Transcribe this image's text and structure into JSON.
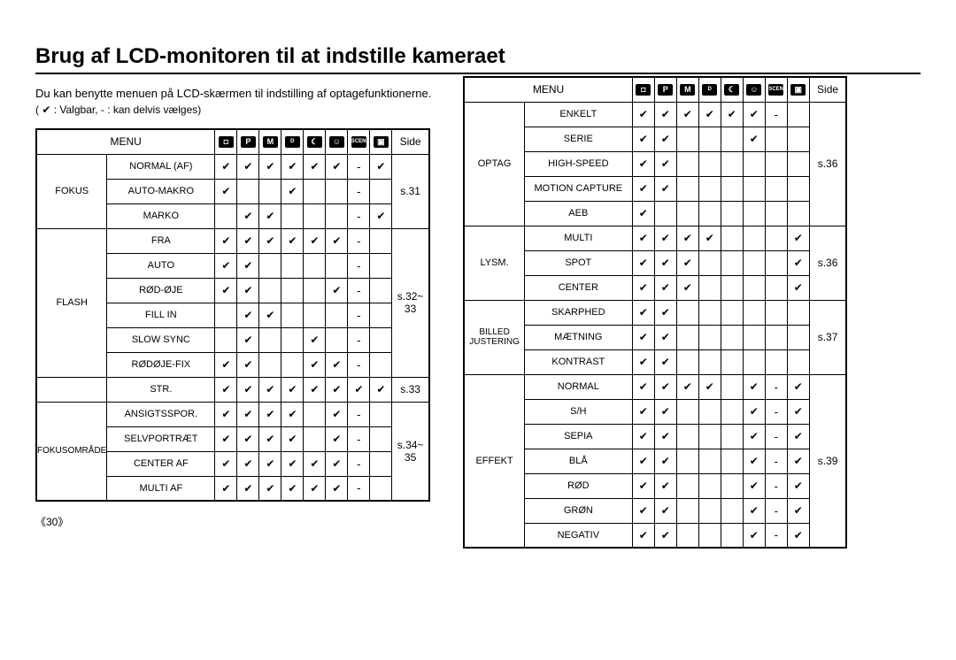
{
  "page_title": "Brug af LCD-monitoren til at indstille kameraet",
  "intro": "Du kan benytte menuen på LCD-skærmen til indstilling af optagefunktionerne.",
  "legend": "( ✔ : Valgbar, - : kan delvis vælges)",
  "page_number": "《30》",
  "check": "✔",
  "dash": "-",
  "header": {
    "menu": "MENU",
    "side": "Side",
    "icons": [
      "camera",
      "P",
      "M",
      "dual",
      "night",
      "portrait",
      "SCENE",
      "movie"
    ]
  },
  "icon_labels": {
    "camera": "◘",
    "P": "P",
    "M": "M",
    "dual": "ᴰ",
    "night": "☾",
    "portrait": "☺",
    "SCENE": "SCENE",
    "movie": "▣"
  },
  "left": {
    "groups": [
      {
        "cat": "FOKUS",
        "side": "s.31",
        "catClass": "cat",
        "rows": [
          {
            "item": "NORMAL (AF)",
            "cells": [
              "c",
              "c",
              "c",
              "c",
              "c",
              "c",
              "d",
              "c"
            ]
          },
          {
            "item": "AUTO-MAKRO",
            "cells": [
              "c",
              "",
              "",
              "c",
              "",
              "",
              "d",
              ""
            ]
          },
          {
            "item": "MARKO",
            "cells": [
              "",
              "c",
              "c",
              "",
              "",
              "",
              "d",
              "c"
            ]
          }
        ]
      },
      {
        "cat": "FLASH",
        "side": "s.32~ 33",
        "catClass": "cat",
        "rows": [
          {
            "item": "FRA",
            "cells": [
              "c",
              "c",
              "c",
              "c",
              "c",
              "c",
              "d",
              ""
            ]
          },
          {
            "item": "AUTO",
            "cells": [
              "c",
              "c",
              "",
              "",
              "",
              "",
              "d",
              ""
            ]
          },
          {
            "item": "RØD-ØJE",
            "cells": [
              "c",
              "c",
              "",
              "",
              "",
              "c",
              "d",
              ""
            ]
          },
          {
            "item": "FILL IN",
            "cells": [
              "",
              "c",
              "c",
              "",
              "",
              "",
              "d",
              ""
            ]
          },
          {
            "item": "SLOW SYNC",
            "cells": [
              "",
              "c",
              "",
              "",
              "c",
              "",
              "d",
              ""
            ]
          },
          {
            "item": "RØDØJE-FIX",
            "cells": [
              "c",
              "c",
              "",
              "",
              "c",
              "c",
              "d",
              ""
            ]
          }
        ]
      },
      {
        "cat": "",
        "side": "s.33",
        "catClass": "cat",
        "rows": [
          {
            "item": "STR.",
            "cells": [
              "c",
              "c",
              "c",
              "c",
              "c",
              "c",
              "c",
              "c"
            ]
          }
        ]
      },
      {
        "cat": "FOKUSOMRÅDE",
        "side": "s.34~ 35",
        "catClass": "cat-small",
        "rows": [
          {
            "item": "ANSIGTSSPOR.",
            "cells": [
              "c",
              "c",
              "c",
              "c",
              "",
              "c",
              "d",
              ""
            ]
          },
          {
            "item": "SELVPORTRÆT",
            "cells": [
              "c",
              "c",
              "c",
              "c",
              "",
              "c",
              "d",
              ""
            ]
          },
          {
            "item": "CENTER AF",
            "cells": [
              "c",
              "c",
              "c",
              "c",
              "c",
              "c",
              "d",
              ""
            ]
          },
          {
            "item": "MULTI AF",
            "cells": [
              "c",
              "c",
              "c",
              "c",
              "c",
              "c",
              "d",
              ""
            ]
          }
        ]
      }
    ]
  },
  "right": {
    "groups": [
      {
        "cat": "OPTAG",
        "side": "s.36",
        "catClass": "cat",
        "rows": [
          {
            "item": "ENKELT",
            "cells": [
              "c",
              "c",
              "c",
              "c",
              "c",
              "c",
              "d",
              ""
            ]
          },
          {
            "item": "SERIE",
            "cells": [
              "c",
              "c",
              "",
              "",
              "",
              "c",
              "",
              ""
            ]
          },
          {
            "item": "HIGH-SPEED",
            "cells": [
              "c",
              "c",
              "",
              "",
              "",
              "",
              "",
              ""
            ]
          },
          {
            "item": "MOTION CAPTURE",
            "cells": [
              "c",
              "c",
              "",
              "",
              "",
              "",
              "",
              ""
            ]
          },
          {
            "item": "AEB",
            "cells": [
              "c",
              "",
              "",
              "",
              "",
              "",
              "",
              ""
            ]
          }
        ]
      },
      {
        "cat": "LYSM.",
        "side": "s.36",
        "catClass": "cat",
        "rows": [
          {
            "item": "MULTI",
            "cells": [
              "c",
              "c",
              "c",
              "c",
              "",
              "",
              "",
              "c"
            ]
          },
          {
            "item": "SPOT",
            "cells": [
              "c",
              "c",
              "c",
              "",
              "",
              "",
              "",
              "c"
            ]
          },
          {
            "item": "CENTER",
            "cells": [
              "c",
              "c",
              "c",
              "",
              "",
              "",
              "",
              "c"
            ]
          }
        ]
      },
      {
        "cat": "BILLED JUSTERING",
        "side": "s.37",
        "catClass": "cat-small",
        "rows": [
          {
            "item": "SKARPHED",
            "cells": [
              "c",
              "c",
              "",
              "",
              "",
              "",
              "",
              ""
            ]
          },
          {
            "item": "MÆTNING",
            "cells": [
              "c",
              "c",
              "",
              "",
              "",
              "",
              "",
              ""
            ]
          },
          {
            "item": "KONTRAST",
            "cells": [
              "c",
              "c",
              "",
              "",
              "",
              "",
              "",
              ""
            ]
          }
        ]
      },
      {
        "cat": "EFFEKT",
        "side": "s.39",
        "catClass": "cat",
        "rows": [
          {
            "item": "NORMAL",
            "cells": [
              "c",
              "c",
              "c",
              "c",
              "",
              "c",
              "d",
              "c"
            ]
          },
          {
            "item": "S/H",
            "cells": [
              "c",
              "c",
              "",
              "",
              "",
              "c",
              "d",
              "c"
            ]
          },
          {
            "item": "SEPIA",
            "cells": [
              "c",
              "c",
              "",
              "",
              "",
              "c",
              "d",
              "c"
            ]
          },
          {
            "item": "BLÅ",
            "cells": [
              "c",
              "c",
              "",
              "",
              "",
              "c",
              "d",
              "c"
            ]
          },
          {
            "item": "RØD",
            "cells": [
              "c",
              "c",
              "",
              "",
              "",
              "c",
              "d",
              "c"
            ]
          },
          {
            "item": "GRØN",
            "cells": [
              "c",
              "c",
              "",
              "",
              "",
              "c",
              "d",
              "c"
            ]
          },
          {
            "item": "NEGATIV",
            "cells": [
              "c",
              "c",
              "",
              "",
              "",
              "c",
              "d",
              "c"
            ]
          }
        ]
      }
    ]
  }
}
